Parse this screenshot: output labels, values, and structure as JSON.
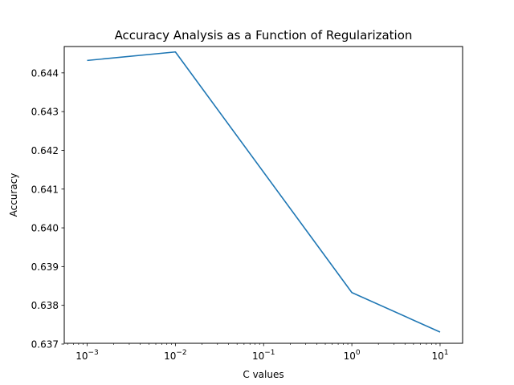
{
  "chart_data": {
    "type": "line",
    "title": "Accuracy Analysis as a Function of Regularization",
    "xlabel": "C values",
    "ylabel": "Accuracy",
    "xscale": "log",
    "xlim": [
      0.00055,
      18
    ],
    "ylim": [
      0.63702,
      0.64468
    ],
    "grid": false,
    "legend": "none",
    "x_ticks": [
      {
        "value": 0.001,
        "base": "10",
        "exp": "−3"
      },
      {
        "value": 0.01,
        "base": "10",
        "exp": "−2"
      },
      {
        "value": 0.1,
        "base": "10",
        "exp": "−1"
      },
      {
        "value": 1,
        "base": "10",
        "exp": "0"
      },
      {
        "value": 10,
        "base": "10",
        "exp": "1"
      }
    ],
    "y_ticks": [
      {
        "value": 0.637,
        "label": "0.637"
      },
      {
        "value": 0.638,
        "label": "0.638"
      },
      {
        "value": 0.639,
        "label": "0.639"
      },
      {
        "value": 0.64,
        "label": "0.640"
      },
      {
        "value": 0.641,
        "label": "0.641"
      },
      {
        "value": 0.642,
        "label": "0.642"
      },
      {
        "value": 0.643,
        "label": "0.643"
      },
      {
        "value": 0.644,
        "label": "0.644"
      }
    ],
    "series": [
      {
        "color": "#1f77b4",
        "x": [
          0.001,
          0.01,
          1,
          10
        ],
        "y": [
          0.64432,
          0.64454,
          0.63833,
          0.63731
        ]
      }
    ]
  }
}
